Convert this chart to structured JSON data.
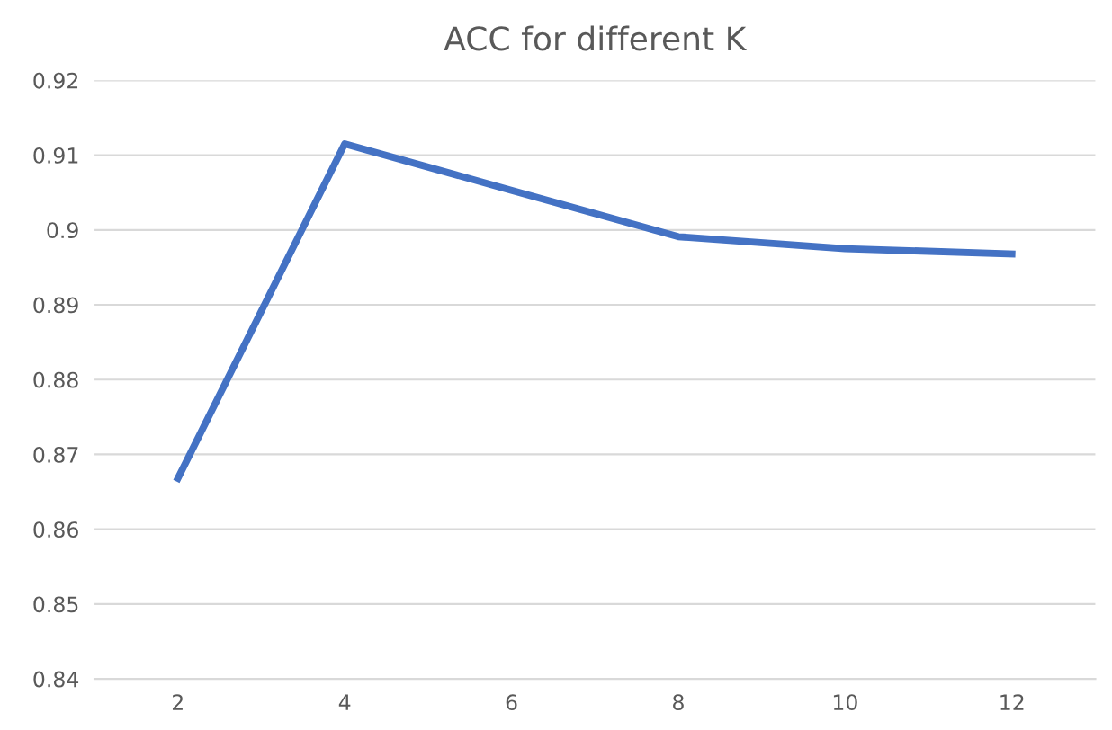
{
  "chart_data": {
    "type": "line",
    "title": "ACC for different K",
    "categories": [
      "2",
      "4",
      "6",
      "8",
      "10",
      "12"
    ],
    "series": [
      {
        "color": "#4472c4",
        "values": [
          0.8668,
          0.9115,
          0.9053,
          0.8991,
          0.8975,
          0.8968
        ]
      }
    ],
    "ylim": [
      0.84,
      0.92
    ],
    "yticks": [
      0.84,
      0.85,
      0.86,
      0.87,
      0.88,
      0.89,
      0.9,
      0.91,
      0.92
    ],
    "grid": "y",
    "marker": "none",
    "line_style": "solid"
  }
}
